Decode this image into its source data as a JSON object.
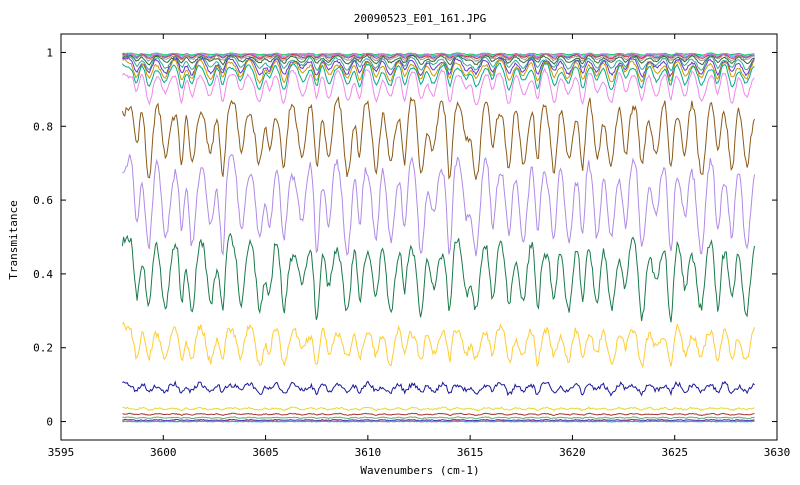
{
  "chart_data": {
    "type": "line",
    "title": "20090523_E01_161.JPG",
    "xlabel": "Wavenumbers (cm-1)",
    "ylabel": "Transmitance",
    "xlim": [
      3595,
      3630
    ],
    "ylim": [
      -0.05,
      1.05
    ],
    "x_ticks": [
      3595,
      3600,
      3605,
      3610,
      3615,
      3620,
      3625,
      3630
    ],
    "y_ticks": [
      0,
      0.2,
      0.4,
      0.6,
      0.8,
      1
    ],
    "x_tick_labels": [
      "3595",
      "3600",
      "3605",
      "3610",
      "3615",
      "3620",
      "3625",
      "3630"
    ],
    "y_tick_labels": [
      "0",
      "0.2",
      "0.4",
      "0.6",
      "0.8",
      "1"
    ],
    "grid": false,
    "legend": "none",
    "x_range": [
      3598.0,
      3628.9
    ],
    "line_positions": [
      3598.7,
      3599.3,
      3600.1,
      3600.9,
      3601.4,
      3602.3,
      3602.9,
      3603.8,
      3604.7,
      3605.2,
      3605.9,
      3606.8,
      3607.5,
      3608.1,
      3609.0,
      3609.6,
      3610.4,
      3611.1,
      3611.8,
      3612.6,
      3613.2,
      3614.0,
      3614.8,
      3615.3,
      3616.1,
      3616.9,
      3617.6,
      3618.3,
      3619.1,
      3619.8,
      3620.5,
      3621.2,
      3621.9,
      3622.6,
      3623.4,
      3624.1,
      3624.8,
      3625.5,
      3626.3,
      3627.1,
      3627.8,
      3628.5
    ],
    "series": [
      {
        "color": "#00cc66",
        "baseline": 0.998,
        "depth": 0.004,
        "noise": 0.001
      },
      {
        "color": "#ff66cc",
        "baseline": 0.997,
        "depth": 0.006,
        "noise": 0.001
      },
      {
        "color": "#6699ff",
        "baseline": 0.996,
        "depth": 0.008,
        "noise": 0.001
      },
      {
        "color": "#cc3333",
        "baseline": 0.995,
        "depth": 0.01,
        "noise": 0.001
      },
      {
        "color": "#999999",
        "baseline": 0.994,
        "depth": 0.014,
        "noise": 0.002
      },
      {
        "color": "#336633",
        "baseline": 0.992,
        "depth": 0.02,
        "noise": 0.002
      },
      {
        "color": "#33aa99",
        "baseline": 0.988,
        "depth": 0.03,
        "noise": 0.002
      },
      {
        "color": "#6633cc",
        "baseline": 0.985,
        "depth": 0.04,
        "noise": 0.003
      },
      {
        "color": "#cc9900",
        "baseline": 0.98,
        "depth": 0.05,
        "noise": 0.003
      },
      {
        "color": "#00aa88",
        "baseline": 0.972,
        "depth": 0.06,
        "noise": 0.003
      },
      {
        "color": "#ee88ee",
        "baseline": 0.955,
        "depth": 0.08,
        "noise": 0.004
      },
      {
        "color": "#8b5a1a",
        "baseline": 0.88,
        "depth": 0.18,
        "noise": 0.01
      },
      {
        "color": "#b08ae6",
        "baseline": 0.72,
        "depth": 0.22,
        "noise": 0.012
      },
      {
        "color": "#1a7a4a",
        "baseline": 0.5,
        "depth": 0.18,
        "noise": 0.012
      },
      {
        "color": "#ffcc33",
        "baseline": 0.26,
        "depth": 0.09,
        "noise": 0.01
      },
      {
        "color": "#1a1a99",
        "baseline": 0.105,
        "depth": 0.025,
        "noise": 0.006
      },
      {
        "color": "#dddd33",
        "baseline": 0.038,
        "depth": 0.006,
        "noise": 0.002
      },
      {
        "color": "#aa3333",
        "baseline": 0.022,
        "depth": 0.004,
        "noise": 0.001
      },
      {
        "color": "#66aa66",
        "baseline": 0.012,
        "depth": 0.003,
        "noise": 0.001
      },
      {
        "color": "#3333cc",
        "baseline": 0.005,
        "depth": 0.002,
        "noise": 0.001
      },
      {
        "color": "#ff3333",
        "baseline": 0.001,
        "depth": 0.001,
        "noise": 0.001
      },
      {
        "color": "#00cccc",
        "baseline": 0.0,
        "depth": 0.0,
        "noise": 0.001
      }
    ]
  }
}
